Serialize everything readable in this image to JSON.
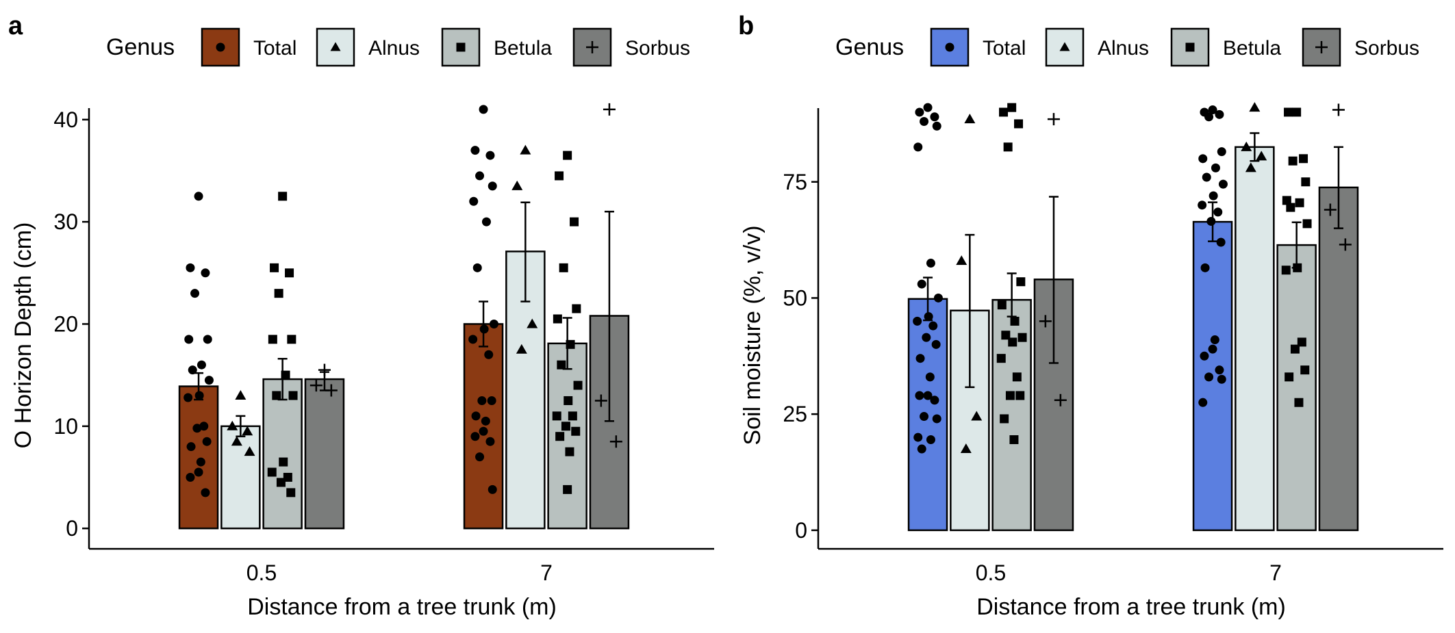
{
  "chart_data": [
    {
      "type": "bar",
      "panel": "a",
      "legend": {
        "title": "Genus",
        "placement": "top",
        "entries": [
          {
            "label": "Total",
            "color": "#8B3A13",
            "marker": "circle"
          },
          {
            "label": "Alnus",
            "color": "#DDE8E8",
            "marker": "triangle"
          },
          {
            "label": "Betula",
            "color": "#B8C1BF",
            "marker": "square"
          },
          {
            "label": "Sorbus",
            "color": "#7A7C7B",
            "marker": "plus"
          }
        ]
      },
      "xlabel": "Distance from a tree trunk (m)",
      "ylabel": "O Horizon Depth (cm)",
      "categories": [
        "0.5",
        "7"
      ],
      "ylim": [
        -2,
        43
      ],
      "yticks": [
        0,
        10,
        20,
        30,
        40
      ],
      "series": [
        {
          "name": "Total",
          "values": [
            13.9,
            20.0
          ],
          "err": [
            [
              12.6,
              15.2
            ],
            [
              17.8,
              22.2
            ]
          ],
          "points": [
            [
              32.5,
              25.5,
              25.0,
              23.0,
              18.5,
              18.5,
              16.0,
              15.5,
              14.5,
              13.0,
              12.8,
              10.0,
              9.8,
              8.5,
              8.0,
              6.5,
              5.5,
              5.0,
              3.5
            ],
            [
              41.0,
              37.0,
              36.5,
              34.5,
              33.5,
              32.0,
              30.0,
              25.5,
              20.0,
              19.5,
              18.5,
              17.0,
              12.5,
              12.5,
              11.0,
              10.5,
              9.5,
              9.0,
              8.5,
              7.0,
              3.8
            ]
          ]
        },
        {
          "name": "Alnus",
          "values": [
            10.0,
            27.1
          ],
          "err": [
            [
              9.0,
              11.0
            ],
            [
              22.2,
              31.9
            ]
          ],
          "points": [
            [
              13.0,
              10.0,
              9.5,
              8.5,
              7.5
            ],
            [
              37.0,
              33.5,
              20.0,
              17.5
            ]
          ]
        },
        {
          "name": "Betula",
          "values": [
            14.6,
            18.1
          ],
          "err": [
            [
              12.6,
              16.6
            ],
            [
              15.6,
              20.6
            ]
          ],
          "points": [
            [
              32.5,
              25.5,
              25.0,
              23.0,
              18.5,
              18.5,
              15.0,
              13.0,
              13.0,
              6.5,
              5.5,
              5.0,
              4.5,
              3.5
            ],
            [
              36.5,
              34.5,
              30.0,
              25.5,
              21.5,
              20.5,
              18.0,
              16.0,
              14.0,
              12.5,
              11.0,
              11.0,
              10.0,
              9.5,
              9.0,
              7.5,
              3.8
            ]
          ]
        },
        {
          "name": "Sorbus",
          "values": [
            14.6,
            20.8
          ],
          "err": [
            [
              13.5,
              15.3
            ],
            [
              10.5,
              31.0
            ]
          ],
          "points": [
            [
              15.5,
              14.0,
              13.5
            ],
            [
              41.0,
              12.5,
              8.5
            ]
          ]
        }
      ]
    },
    {
      "type": "bar",
      "panel": "b",
      "legend": {
        "title": "Genus",
        "placement": "top",
        "entries": [
          {
            "label": "Total",
            "color": "#5B7FE0",
            "marker": "circle"
          },
          {
            "label": "Alnus",
            "color": "#DDE8E8",
            "marker": "triangle"
          },
          {
            "label": "Betula",
            "color": "#B8C1BF",
            "marker": "square"
          },
          {
            "label": "Sorbus",
            "color": "#7A7C7B",
            "marker": "plus"
          }
        ]
      },
      "xlabel": "Distance from a tree trunk (m)",
      "ylabel": "Soil moisture (%, v/v)",
      "categories": [
        "0.5",
        "7"
      ],
      "ylim": [
        -4,
        95
      ],
      "yticks": [
        0,
        25,
        50,
        75
      ],
      "series": [
        {
          "name": "Total",
          "values": [
            49.8,
            66.4
          ],
          "err": [
            [
              45.2,
              54.4
            ],
            [
              62.2,
              70.6
            ]
          ],
          "points": [
            [
              91.0,
              90.0,
              89.0,
              88.0,
              87.0,
              82.5,
              57.5,
              53.0,
              50.0,
              46.0,
              45.0,
              44.0,
              41.5,
              40.0,
              37.0,
              33.0,
              29.0,
              29.0,
              28.0,
              24.5,
              24.0,
              20.0,
              19.5,
              17.5
            ],
            [
              90.5,
              90.0,
              89.5,
              89.0,
              81.5,
              80.0,
              78.0,
              76.0,
              74.5,
              72.0,
              70.0,
              68.5,
              66.5,
              62.0,
              56.5,
              41.0,
              39.0,
              37.5,
              34.5,
              33.0,
              32.5,
              27.5
            ]
          ]
        },
        {
          "name": "Alnus",
          "values": [
            47.3,
            82.5
          ],
          "err": [
            [
              30.8,
              63.6
            ],
            [
              79.5,
              85.5
            ]
          ],
          "points": [
            [
              88.5,
              58.0,
              24.5,
              17.5
            ],
            [
              91.0,
              82.5,
              80.5,
              78.0
            ]
          ]
        },
        {
          "name": "Betula",
          "values": [
            49.6,
            61.4
          ],
          "err": [
            [
              46.0,
              55.3
            ],
            [
              56.5,
              66.3
            ]
          ],
          "points": [
            [
              91.0,
              90.0,
              87.5,
              82.5,
              53.5,
              48.5,
              45.0,
              42.0,
              41.5,
              40.5,
              37.0,
              33.0,
              29.0,
              29.0,
              24.0,
              19.5
            ],
            [
              90.0,
              90.0,
              80.0,
              79.5,
              75.0,
              71.0,
              70.5,
              69.5,
              66.0,
              56.5,
              56.0,
              40.5,
              39.0,
              34.5,
              33.0,
              27.5
            ]
          ]
        },
        {
          "name": "Sorbus",
          "values": [
            54.0,
            73.8
          ],
          "err": [
            [
              36.0,
              71.8
            ],
            [
              65.0,
              82.5
            ]
          ],
          "points": [
            [
              88.5,
              45.0,
              28.0
            ],
            [
              90.5,
              69.0,
              61.5
            ]
          ]
        }
      ]
    }
  ]
}
